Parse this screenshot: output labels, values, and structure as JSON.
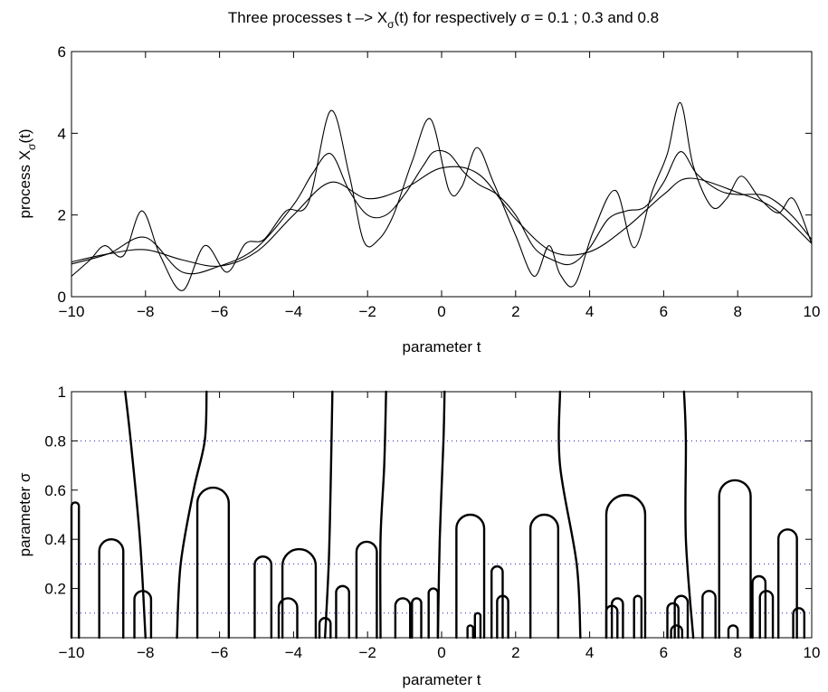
{
  "figure": {
    "title": {
      "prefix": "Three processes t –> X",
      "sub": "σ",
      "suffix": "(t) for respectively σ = 0.1 ; 0.3 and 0.8"
    }
  },
  "chart_data": [
    {
      "type": "line",
      "xlabel": "parameter t",
      "ylabel": {
        "prefix": "process X",
        "sub": "σ",
        "suffix": "(t)"
      },
      "xlim": [
        -10,
        10
      ],
      "ylim": [
        0,
        6
      ],
      "xticks": [
        -10,
        -8,
        -6,
        -4,
        -2,
        0,
        2,
        4,
        6,
        8,
        10
      ],
      "yticks": [
        0,
        2,
        4,
        6
      ],
      "grid": false,
      "colors": {
        "line": "#000000"
      },
      "series": [
        {
          "sigma": 0.1,
          "x": [
            -10,
            -9.5,
            -9.1,
            -8.6,
            -8.1,
            -7.6,
            -7.0,
            -6.4,
            -5.8,
            -5.3,
            -4.8,
            -4.2,
            -3.6,
            -3.0,
            -2.5,
            -2.1,
            -1.7,
            -1.3,
            -0.8,
            -0.3,
            0.2,
            0.55,
            0.95,
            1.4,
            2.0,
            2.5,
            2.9,
            3.2,
            3.6,
            4.1,
            4.7,
            5.2,
            5.7,
            6.1,
            6.45,
            6.8,
            7.3,
            7.7,
            8.1,
            8.6,
            9.1,
            9.5,
            10
          ],
          "y": [
            0.5,
            0.9,
            1.25,
            1.0,
            2.1,
            1.0,
            0.15,
            1.25,
            0.6,
            1.3,
            1.4,
            2.1,
            2.3,
            4.55,
            3.0,
            1.35,
            1.4,
            2.0,
            3.3,
            4.35,
            2.6,
            2.7,
            3.65,
            2.8,
            1.5,
            0.5,
            1.25,
            0.55,
            0.3,
            1.6,
            2.6,
            1.2,
            2.6,
            3.5,
            4.75,
            3.2,
            2.2,
            2.4,
            2.95,
            2.4,
            2.05,
            2.4,
            1.3
          ]
        },
        {
          "sigma": 0.3,
          "x": [
            -10,
            -9,
            -8,
            -7,
            -6,
            -5,
            -4,
            -3.5,
            -3.0,
            -2.5,
            -2,
            -1.5,
            -1,
            -0.5,
            -0.2,
            0.2,
            0.6,
            1.0,
            1.5,
            2.0,
            2.5,
            3.0,
            3.5,
            4.0,
            4.5,
            5.0,
            5.5,
            6.0,
            6.45,
            6.9,
            7.5,
            8.0,
            8.6,
            9.0,
            9.5,
            10
          ],
          "y": [
            0.8,
            1.05,
            1.45,
            0.6,
            0.75,
            1.2,
            2.25,
            3.0,
            3.5,
            2.6,
            2.0,
            2.0,
            2.5,
            3.2,
            3.55,
            3.5,
            3.05,
            2.75,
            2.5,
            2.0,
            1.2,
            0.9,
            0.8,
            1.2,
            1.9,
            2.1,
            2.2,
            2.8,
            3.55,
            3.0,
            2.6,
            2.5,
            2.5,
            2.35,
            1.95,
            1.4
          ]
        },
        {
          "sigma": 0.8,
          "x": [
            -10,
            -9,
            -8,
            -7,
            -6,
            -5,
            -4,
            -3,
            -2,
            -1,
            0,
            1,
            2,
            3,
            4,
            5,
            6,
            6.7,
            8,
            9,
            10
          ],
          "y": [
            0.85,
            1.05,
            1.15,
            0.9,
            0.75,
            1.1,
            2.0,
            2.8,
            2.4,
            2.65,
            3.15,
            3.0,
            1.9,
            1.1,
            1.1,
            1.7,
            2.5,
            2.9,
            2.55,
            2.15,
            1.3
          ]
        }
      ]
    },
    {
      "type": "line",
      "xlabel": "parameter t",
      "ylabel": "parameter σ",
      "xlim": [
        -10,
        10
      ],
      "ylim": [
        0,
        1
      ],
      "xticks": [
        -10,
        -8,
        -6,
        -4,
        -2,
        0,
        2,
        4,
        6,
        8,
        10
      ],
      "yticks": [
        0.2,
        0.4,
        0.6,
        0.8,
        1
      ],
      "grid": false,
      "reference_levels": [
        0.1,
        0.3,
        0.8
      ],
      "colors": {
        "curve": "#000000",
        "reference": "#2020c0"
      },
      "arches": [
        [
          -10.0,
          -9.8,
          0.55
        ],
        [
          -9.25,
          -8.6,
          0.4
        ],
        [
          -8.3,
          -7.85,
          0.19
        ],
        [
          -6.6,
          -5.75,
          0.61
        ],
        [
          -5.05,
          -4.6,
          0.33
        ],
        [
          -4.4,
          -3.9,
          0.16
        ],
        [
          -4.3,
          -3.4,
          0.36
        ],
        [
          -3.3,
          -3.0,
          0.08
        ],
        [
          -2.85,
          -2.5,
          0.21
        ],
        [
          -2.3,
          -1.75,
          0.39
        ],
        [
          -1.25,
          -0.85,
          0.16
        ],
        [
          -0.8,
          -0.55,
          0.16
        ],
        [
          -0.35,
          -0.1,
          0.2
        ],
        [
          0.4,
          1.15,
          0.5
        ],
        [
          0.7,
          0.85,
          0.05
        ],
        [
          0.9,
          1.05,
          0.1
        ],
        [
          1.35,
          1.65,
          0.29
        ],
        [
          1.5,
          1.8,
          0.17
        ],
        [
          2.4,
          3.15,
          0.5
        ],
        [
          4.45,
          4.75,
          0.13
        ],
        [
          4.6,
          4.9,
          0.16
        ],
        [
          4.45,
          5.5,
          0.58
        ],
        [
          5.2,
          5.4,
          0.17
        ],
        [
          6.1,
          6.4,
          0.14
        ],
        [
          6.2,
          6.5,
          0.05
        ],
        [
          6.3,
          6.65,
          0.17
        ],
        [
          7.05,
          7.4,
          0.19
        ],
        [
          7.5,
          8.35,
          0.64
        ],
        [
          7.75,
          8.0,
          0.05
        ],
        [
          8.4,
          8.75,
          0.25
        ],
        [
          8.6,
          8.95,
          0.19
        ],
        [
          9.1,
          9.6,
          0.44
        ],
        [
          9.5,
          9.8,
          0.12
        ]
      ],
      "branches": [
        [
          [
            -8.0,
            0.0
          ],
          [
            -8.15,
            0.4
          ],
          [
            -8.4,
            0.8
          ],
          [
            -8.55,
            1.0
          ]
        ],
        [
          [
            -7.15,
            0.0
          ],
          [
            -7.05,
            0.3
          ],
          [
            -6.7,
            0.6
          ],
          [
            -6.4,
            0.8
          ],
          [
            -6.35,
            1.0
          ]
        ],
        [
          [
            -3.15,
            0.0
          ],
          [
            -3.05,
            0.3
          ],
          [
            -3.0,
            0.6
          ],
          [
            -2.95,
            1.0
          ]
        ],
        [
          [
            -1.65,
            0.0
          ],
          [
            -1.65,
            0.4
          ],
          [
            -1.55,
            0.7
          ],
          [
            -1.5,
            1.0
          ]
        ],
        [
          [
            -0.1,
            0.0
          ],
          [
            -0.05,
            0.4
          ],
          [
            0.05,
            0.8
          ],
          [
            0.08,
            1.0
          ]
        ],
        [
          [
            3.75,
            0.0
          ],
          [
            3.65,
            0.3
          ],
          [
            3.2,
            0.7
          ],
          [
            3.2,
            1.0
          ]
        ],
        [
          [
            6.8,
            0.0
          ],
          [
            6.6,
            0.4
          ],
          [
            6.6,
            0.8
          ],
          [
            6.55,
            1.0
          ]
        ]
      ]
    }
  ]
}
